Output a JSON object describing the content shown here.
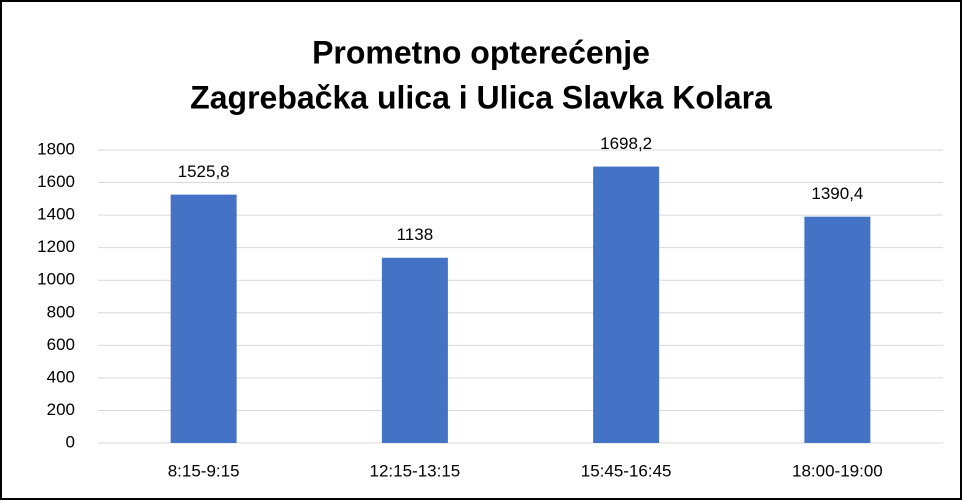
{
  "chart_data": {
    "type": "bar",
    "title": [
      "Prometno opterećenje",
      "Zagrebačka ulica i Ulica Slavka Kolara"
    ],
    "categories": [
      "8:15-9:15",
      "12:15-13:15",
      "15:45-16:45",
      "18:00-19:00"
    ],
    "values": [
      1525.8,
      1138,
      1698.2,
      1390.4
    ],
    "value_labels": [
      "1525,8",
      "1138",
      "1698,2",
      "1390,4"
    ],
    "color": "#4472c4",
    "ylim": [
      0,
      1800
    ],
    "yticks": [
      0,
      200,
      400,
      600,
      800,
      1000,
      1200,
      1400,
      1600,
      1800
    ],
    "grid": true
  }
}
